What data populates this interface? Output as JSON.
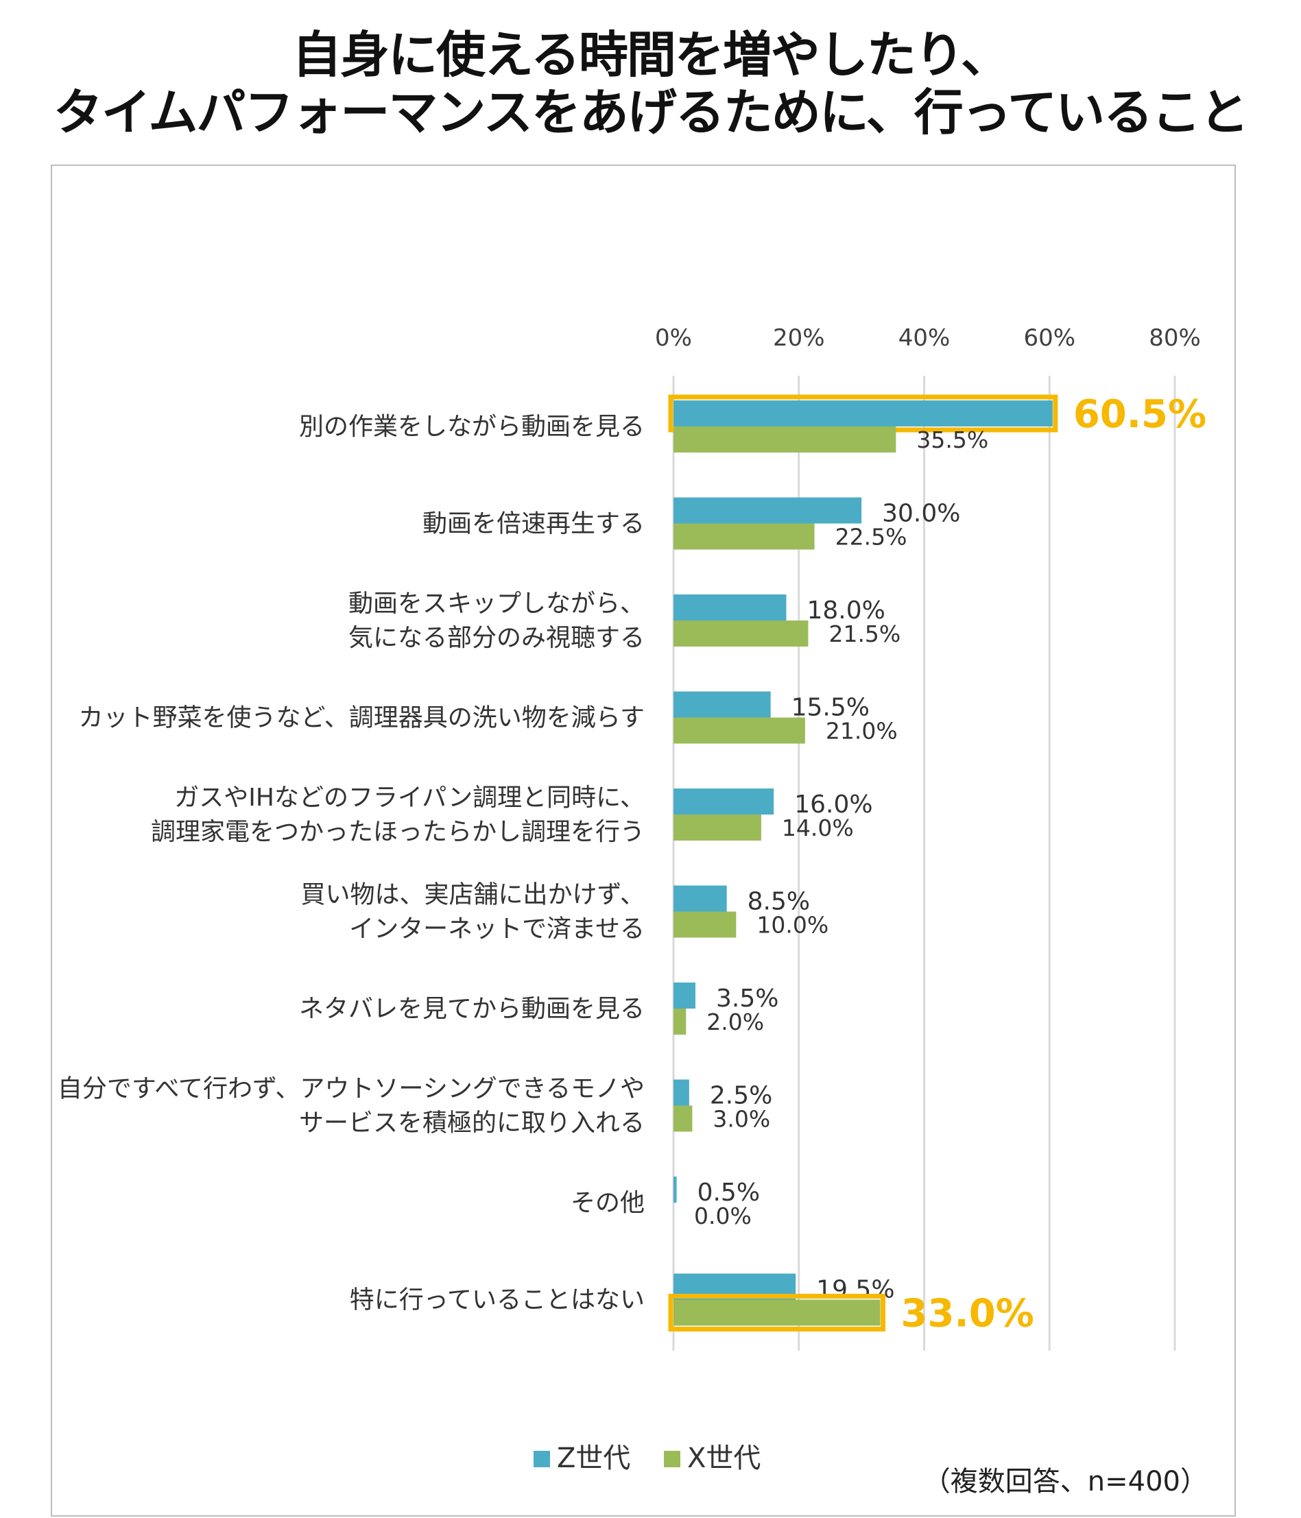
{
  "title": {
    "line1": "自身に使える時間を増やしたり、",
    "line2": "タイムパフォーマンスをあげるために、行っていること"
  },
  "note": "（複数回答、n=400）",
  "colors": {
    "z_series": "#4bacc6",
    "x_series": "#9bbb59",
    "highlight": "#f6b800",
    "grid": "#d9d9d9",
    "text": "#404040"
  },
  "chart_data": {
    "type": "bar",
    "orientation": "horizontal",
    "title": "自身に使える時間を増やしたり、タイムパフォーマンスをあげるために、行っていること",
    "xlim": [
      0,
      80
    ],
    "ticks": [
      "0%",
      "20%",
      "40%",
      "60%",
      "80%"
    ],
    "tick_values": [
      0,
      20,
      40,
      60,
      80
    ],
    "grid": true,
    "legend_position": "bottom",
    "categories": [
      [
        "別の作業をしながら動画を見る"
      ],
      [
        "動画を倍速再生する"
      ],
      [
        "動画をスキップしながら、",
        "気になる部分のみ視聴する"
      ],
      [
        "カット野菜を使うなど、調理器具の洗い物を減らす"
      ],
      [
        "ガスやIHなどのフライパン調理と同時に、",
        "調理家電をつかったほったらかし調理を行う"
      ],
      [
        "買い物は、実店舗に出かけず、",
        "インターネットで済ませる"
      ],
      [
        "ネタバレを見てから動画を見る"
      ],
      [
        "自分ですべて行わず、アウトソーシングできるモノや",
        "サービスを積極的に取り入れる"
      ],
      [
        "その他"
      ],
      [
        "特に行っていることはない"
      ]
    ],
    "series": [
      {
        "name": "Z世代",
        "values": [
          60.5,
          30.0,
          18.0,
          15.5,
          16.0,
          8.5,
          3.5,
          2.5,
          0.5,
          19.5
        ],
        "labels": [
          "60.5%",
          "30.0%",
          "18.0%",
          "15.5%",
          "16.0%",
          "8.5%",
          "3.5%",
          "2.5%",
          "0.5%",
          "19.5%"
        ]
      },
      {
        "name": "X世代",
        "values": [
          35.5,
          22.5,
          21.5,
          21.0,
          14.0,
          10.0,
          2.0,
          3.0,
          0.0,
          33.0
        ],
        "labels": [
          "35.5%",
          "22.5%",
          "21.5%",
          "21.0%",
          "14.0%",
          "10.0%",
          "2.0%",
          "3.0%",
          "0.0%",
          "33.0%"
        ]
      }
    ],
    "highlights": [
      {
        "series": 0,
        "category": 0,
        "label": "60.5%"
      },
      {
        "series": 1,
        "category": 9,
        "label": "33.0%"
      }
    ]
  }
}
